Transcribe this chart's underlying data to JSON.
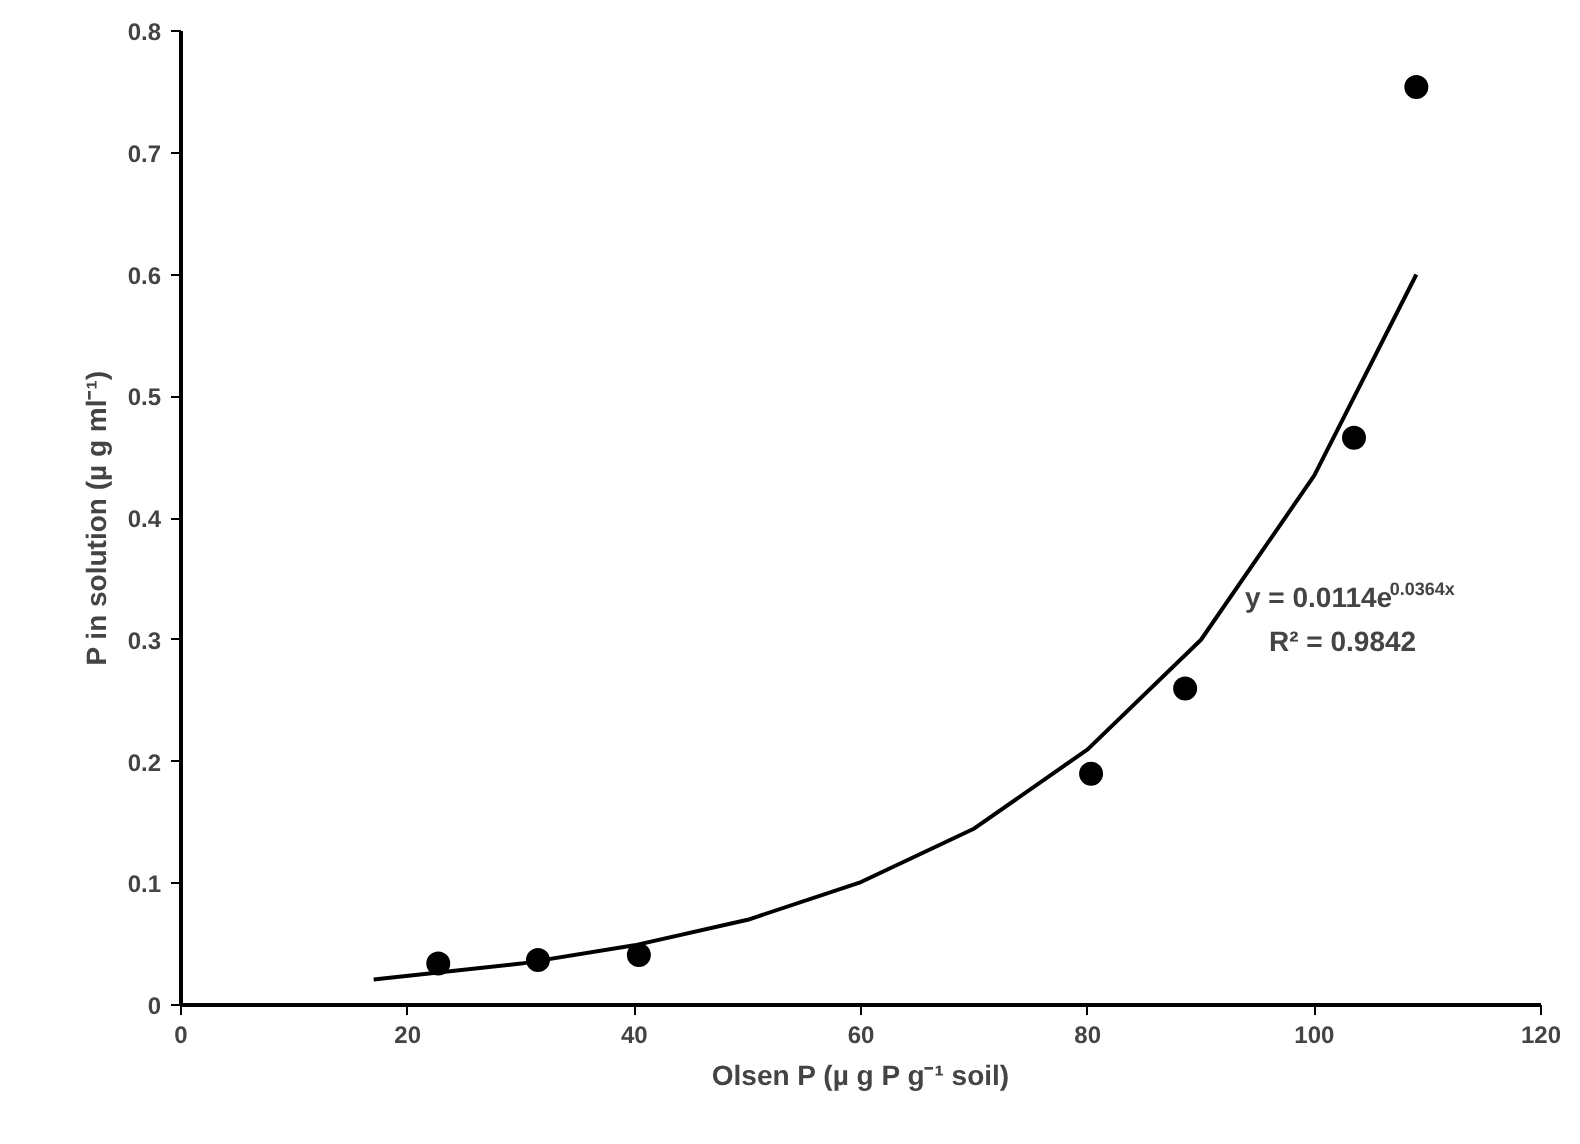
{
  "chart_data": {
    "type": "scatter",
    "xlabel": "Olsen P (µ g P g⁻¹ soil)",
    "ylabel": "P in solution (µ g ml⁻¹)",
    "x": [
      22.7,
      31.5,
      40.4,
      80.3,
      88.6,
      103.5,
      109
    ],
    "series": [
      {
        "color": "#000000",
        "marker": "circle",
        "values": [
          0.034,
          0.037,
          0.041,
          0.19,
          0.26,
          0.466,
          0.754
        ]
      },
      {
        "type": "line",
        "color": "#000000",
        "line_style": "solid",
        "x": [
          17,
          30,
          40,
          50,
          60,
          70,
          80,
          90,
          100,
          109
        ],
        "values": [
          0.021,
          0.034,
          0.049,
          0.07,
          0.101,
          0.145,
          0.21,
          0.3,
          0.435,
          0.6
        ]
      }
    ],
    "annotations": [
      "y = 0.0114e$^{0.0364x}$",
      "R² = 0.9842"
    ],
    "xlim": [
      0,
      120
    ],
    "xticks": [
      0,
      20,
      40,
      60,
      80,
      100,
      120
    ],
    "ylim": [
      0,
      0.8
    ],
    "yticks": [
      0,
      0.1,
      0.2,
      0.3,
      0.4,
      0.5,
      0.6,
      0.7,
      0.8
    ],
    "grid": false
  }
}
